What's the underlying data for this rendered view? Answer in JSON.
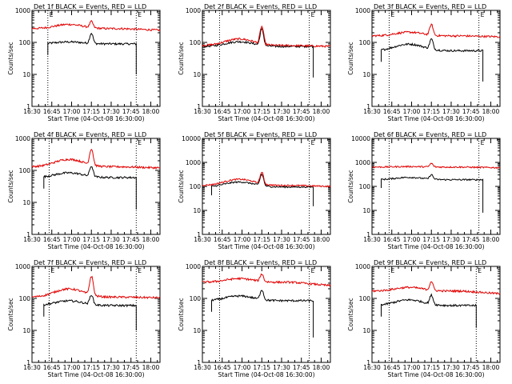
{
  "colors": {
    "events": "#000000",
    "lld": "#e00000",
    "background": "#ffffff"
  },
  "chart_data": [
    {
      "type": "line",
      "title": "Det 1f BLACK = Events, RED = LLD",
      "xlabel": "Start Time (04-Oct-08 16:30:00)",
      "ylabel": "Counts/sec",
      "yscale": "log",
      "ylim": [
        1,
        1000
      ],
      "yticks": [
        "1",
        "10",
        "100",
        "1000"
      ],
      "xticks": [
        "16:30",
        "16:45",
        "17:00",
        "17:15",
        "17:30",
        "17:45",
        "18:00"
      ],
      "xlim": [
        "16:30",
        "18:07"
      ],
      "markers": [
        {
          "time": "16:42",
          "label": "E"
        },
        {
          "time": "17:49",
          "label": "E"
        }
      ],
      "grid": false,
      "series": [
        {
          "name": "Events",
          "start": "16:42",
          "end": "17:49",
          "base": 90,
          "peak": 190,
          "peak_time": "17:15",
          "hump": 1.15,
          "end_drop": 10
        },
        {
          "name": "LLD",
          "start": "16:30",
          "end": "18:07",
          "base": 270,
          "peak": 430,
          "peak_time": "17:15",
          "hump": 1.35,
          "end_value": 240
        }
      ]
    },
    {
      "type": "line",
      "title": "Det 2f BLACK = Events, RED = LLD",
      "xlabel": "Start Time (04-Oct-08 16:30:00)",
      "ylabel": "Counts/sec",
      "yscale": "log",
      "ylim": [
        1,
        1000
      ],
      "yticks": [
        "1",
        "10",
        "100",
        "1000"
      ],
      "xticks": [
        "16:30",
        "16:45",
        "17:00",
        "17:15",
        "17:30",
        "17:45",
        "18:00"
      ],
      "xlim": [
        "16:30",
        "18:07"
      ],
      "markers": [
        {
          "time": "16:43",
          "label": ""
        },
        {
          "time": "17:51",
          "label": "E"
        }
      ],
      "grid": false,
      "series": [
        {
          "name": "Events",
          "start": "16:30",
          "end": "17:54",
          "base": 75,
          "peak": 250,
          "peak_time": "17:15",
          "hump": 1.4,
          "end_drop": 8
        },
        {
          "name": "LLD",
          "start": "16:30",
          "end": "18:07",
          "base": 80,
          "peak": 300,
          "peak_time": "17:15",
          "hump": 1.6,
          "end_value": 75
        }
      ]
    },
    {
      "type": "line",
      "title": "Det 3f BLACK = Events, RED = LLD",
      "xlabel": "Start Time (04-Oct-08 16:30:00)",
      "ylabel": "Counts/sec",
      "yscale": "log",
      "ylim": [
        1,
        1000
      ],
      "yticks": [
        "1",
        "10",
        "100",
        "1000"
      ],
      "xticks": [
        "16:30",
        "16:45",
        "17:00",
        "17:15",
        "17:30",
        "17:45",
        "18:00"
      ],
      "xlim": [
        "16:30",
        "18:07"
      ],
      "markers": [
        {
          "time": "16:43",
          "label": "E"
        },
        {
          "time": "17:51",
          "label": "E"
        }
      ],
      "grid": false,
      "series": [
        {
          "name": "Events",
          "start": "16:37",
          "end": "17:54",
          "base": 55,
          "peak": 120,
          "peak_time": "17:15",
          "hump": 1.6,
          "end_drop": 6
        },
        {
          "name": "LLD",
          "start": "16:30",
          "end": "18:07",
          "base": 160,
          "peak": 350,
          "peak_time": "17:15",
          "hump": 1.3,
          "end_value": 150
        }
      ]
    },
    {
      "type": "line",
      "title": "Det 4f BLACK = Events, RED = LLD",
      "xlabel": "Start Time (04-Oct-08 16:30:00)",
      "ylabel": "Counts/sec",
      "yscale": "log",
      "ylim": [
        1,
        1000
      ],
      "yticks": [
        "1",
        "10",
        "100",
        "1000"
      ],
      "xticks": [
        "16:30",
        "16:45",
        "17:00",
        "17:15",
        "17:30",
        "17:45",
        "18:00"
      ],
      "xlim": [
        "16:30",
        "18:07"
      ],
      "markers": [
        {
          "time": "16:43",
          "label": ""
        },
        {
          "time": "17:49",
          "label": "E"
        }
      ],
      "grid": false,
      "series": [
        {
          "name": "Events",
          "start": "16:39",
          "end": "17:49",
          "base": 60,
          "peak": 130,
          "peak_time": "17:15",
          "hump": 1.4,
          "end_drop": 6
        },
        {
          "name": "LLD",
          "start": "16:30",
          "end": "18:07",
          "base": 130,
          "peak": 450,
          "peak_time": "17:15",
          "hump": 1.7,
          "end_value": 120
        }
      ]
    },
    {
      "type": "line",
      "title": "Det 5f BLACK = Events, RED = LLD",
      "xlabel": "Start Time (04-Oct-08 16:30:00)",
      "ylabel": "Counts/sec",
      "yscale": "log",
      "ylim": [
        1,
        10000
      ],
      "yticks": [
        "1",
        "10",
        "100",
        "1000",
        "10000"
      ],
      "xticks": [
        "16:30",
        "16:45",
        "17:00",
        "17:15",
        "17:30",
        "17:45",
        "18:00"
      ],
      "xlim": [
        "16:30",
        "18:07"
      ],
      "markers": [
        {
          "time": "16:43",
          "label": ""
        },
        {
          "time": "17:51",
          "label": "E"
        }
      ],
      "grid": false,
      "series": [
        {
          "name": "Events",
          "start": "16:37",
          "end": "17:54",
          "base": 95,
          "peak": 300,
          "peak_time": "17:15",
          "hump": 1.6,
          "end_drop": 15
        },
        {
          "name": "LLD",
          "start": "16:30",
          "end": "18:07",
          "base": 110,
          "peak": 360,
          "peak_time": "17:15",
          "hump": 1.8,
          "end_value": 100
        }
      ]
    },
    {
      "type": "line",
      "title": "Det 6f BLACK = Events, RED = LLD",
      "xlabel": "Start Time (04-Oct-08 16:30:00)",
      "ylabel": "Counts/sec",
      "yscale": "log",
      "ylim": [
        1,
        10000
      ],
      "yticks": [
        "1",
        "10",
        "100",
        "1000",
        "10000"
      ],
      "xticks": [
        "16:30",
        "16:45",
        "17:00",
        "17:15",
        "17:30",
        "17:45",
        "18:00"
      ],
      "xlim": [
        "16:30",
        "18:07"
      ],
      "markers": [
        {
          "time": "16:43",
          "label": ""
        },
        {
          "time": "17:51",
          "label": "E"
        }
      ],
      "grid": false,
      "series": [
        {
          "name": "Events",
          "start": "16:37",
          "end": "17:54",
          "base": 190,
          "peak": 300,
          "peak_time": "17:15",
          "hump": 1.25,
          "end_drop": 8
        },
        {
          "name": "LLD",
          "start": "16:30",
          "end": "18:07",
          "base": 640,
          "peak": 900,
          "peak_time": "17:15",
          "hump": 1.05,
          "end_value": 600
        }
      ]
    },
    {
      "type": "line",
      "title": "Det 7f BLACK = Events, RED = LLD",
      "xlabel": "Start Time (04-Oct-08 16:30:00)",
      "ylabel": "Counts/sec",
      "yscale": "log",
      "ylim": [
        1,
        1000
      ],
      "yticks": [
        "1",
        "10",
        "100",
        "1000"
      ],
      "xticks": [
        "16:30",
        "16:45",
        "17:00",
        "17:15",
        "17:30",
        "17:45",
        "18:00"
      ],
      "xlim": [
        "16:30",
        "18:07"
      ],
      "markers": [
        {
          "time": "16:43",
          "label": "E"
        },
        {
          "time": "17:49",
          "label": "E"
        }
      ],
      "grid": false,
      "series": [
        {
          "name": "Events",
          "start": "16:39",
          "end": "17:49",
          "base": 60,
          "peak": 125,
          "peak_time": "17:15",
          "hump": 1.4,
          "end_drop": 10
        },
        {
          "name": "LLD",
          "start": "16:30",
          "end": "18:07",
          "base": 110,
          "peak": 470,
          "peak_time": "17:15",
          "hump": 1.8,
          "end_value": 105
        }
      ]
    },
    {
      "type": "line",
      "title": "Det 8f BLACK = Events, RED = LLD",
      "xlabel": "Start Time (04-Oct-08 16:30:00)",
      "ylabel": "Counts/sec",
      "yscale": "log",
      "ylim": [
        1,
        1000
      ],
      "yticks": [
        "1",
        "10",
        "100",
        "1000"
      ],
      "xticks": [
        "16:30",
        "16:45",
        "17:00",
        "17:15",
        "17:30",
        "17:45",
        "18:00"
      ],
      "xlim": [
        "16:30",
        "18:07"
      ],
      "markers": [
        {
          "time": "16:43",
          "label": ""
        },
        {
          "time": "17:51",
          "label": "E"
        }
      ],
      "grid": false,
      "series": [
        {
          "name": "Events",
          "start": "16:37",
          "end": "17:54",
          "base": 85,
          "peak": 180,
          "peak_time": "17:15",
          "hump": 1.4,
          "end_drop": 6
        },
        {
          "name": "LLD",
          "start": "16:30",
          "end": "18:07",
          "base": 320,
          "peak": 560,
          "peak_time": "17:15",
          "hump": 1.3,
          "end_value": 250
        }
      ]
    },
    {
      "type": "line",
      "title": "Det 9f BLACK = Events, RED = LLD",
      "xlabel": "Start Time (04-Oct-08 16:30:00)",
      "ylabel": "Counts/sec",
      "yscale": "log",
      "ylim": [
        1,
        1000
      ],
      "yticks": [
        "1",
        "10",
        "100",
        "1000"
      ],
      "xticks": [
        "16:30",
        "16:45",
        "17:00",
        "17:15",
        "17:30",
        "17:45",
        "18:00"
      ],
      "xlim": [
        "16:30",
        "18:07"
      ],
      "markers": [
        {
          "time": "16:43",
          "label": "E"
        },
        {
          "time": "17:49",
          "label": "E"
        }
      ],
      "grid": false,
      "series": [
        {
          "name": "Events",
          "start": "16:37",
          "end": "17:49",
          "base": 60,
          "peak": 120,
          "peak_time": "17:15",
          "hump": 1.5,
          "end_drop": 12
        },
        {
          "name": "LLD",
          "start": "16:30",
          "end": "18:07",
          "base": 170,
          "peak": 330,
          "peak_time": "17:15",
          "hump": 1.3,
          "end_value": 140
        }
      ]
    }
  ]
}
